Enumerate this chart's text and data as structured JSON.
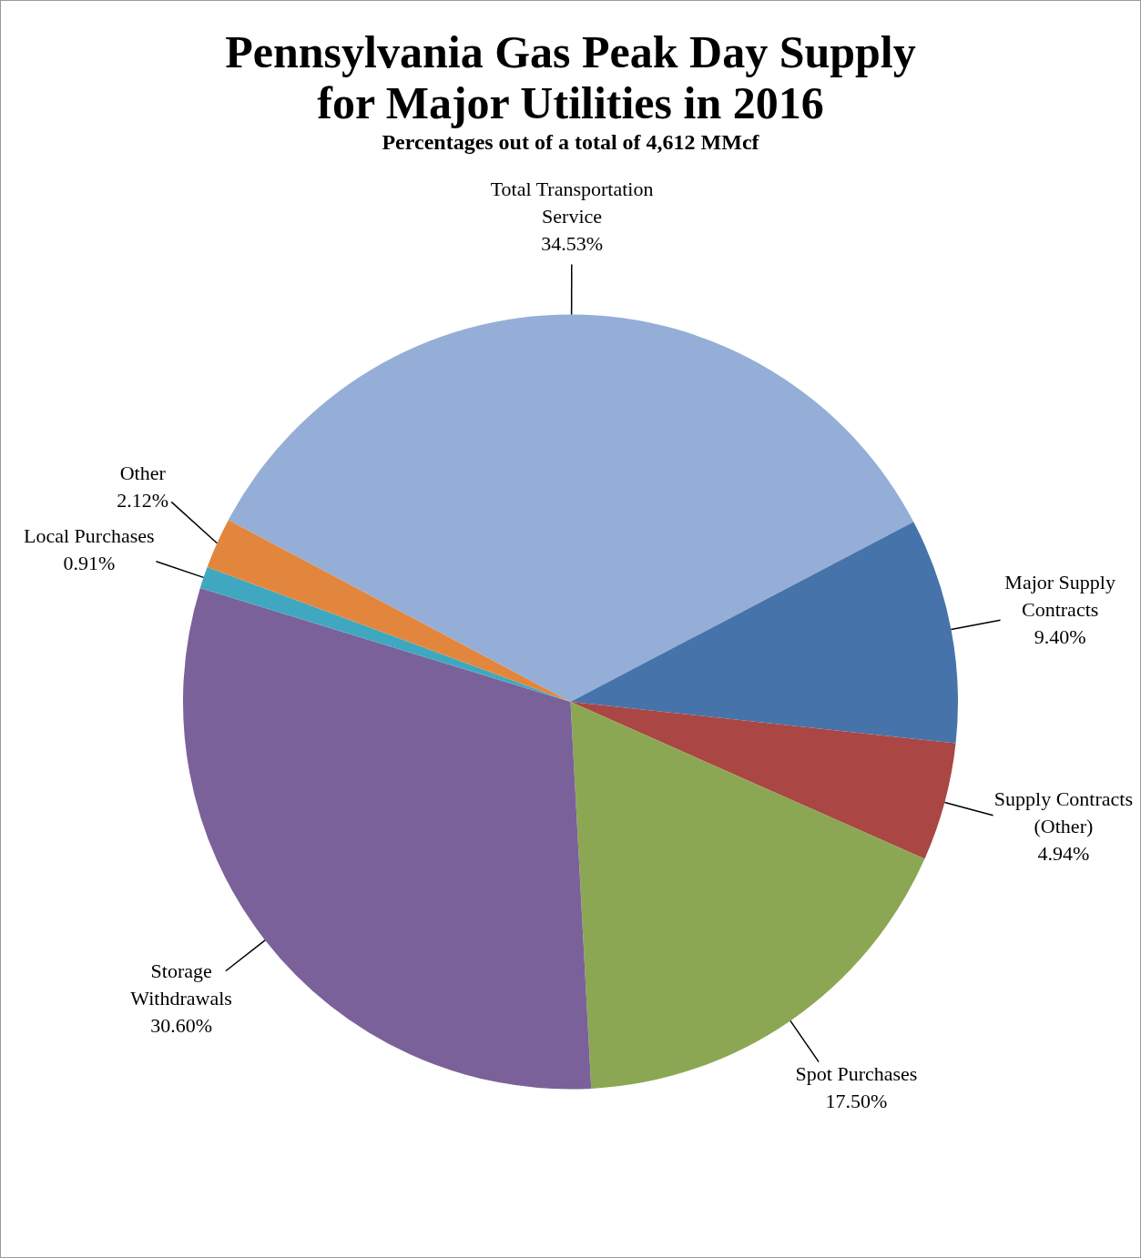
{
  "chart_data": {
    "type": "pie",
    "title": "Pennsylvania Gas Peak Day Supply for Major Utilities in 2016",
    "subtitle": "Percentages out of a total of 4,612 MMcf",
    "categories": [
      "Total Transportation Service",
      "Major Supply Contracts",
      "Supply Contracts (Other)",
      "Spot Purchases",
      "Storage Withdrawals",
      "Local Purchases",
      "Other"
    ],
    "values": [
      34.53,
      9.4,
      4.94,
      17.5,
      30.6,
      0.91,
      2.12
    ],
    "value_labels": [
      "34.53%",
      "9.40%",
      "4.94%",
      "17.50%",
      "30.60%",
      "0.91%",
      "2.12%"
    ],
    "colors": [
      "#95aed7",
      "#4674aa",
      "#aa4644",
      "#8ba753",
      "#7b6199",
      "#3fa8c0",
      "#e2863d"
    ],
    "legend": false
  }
}
